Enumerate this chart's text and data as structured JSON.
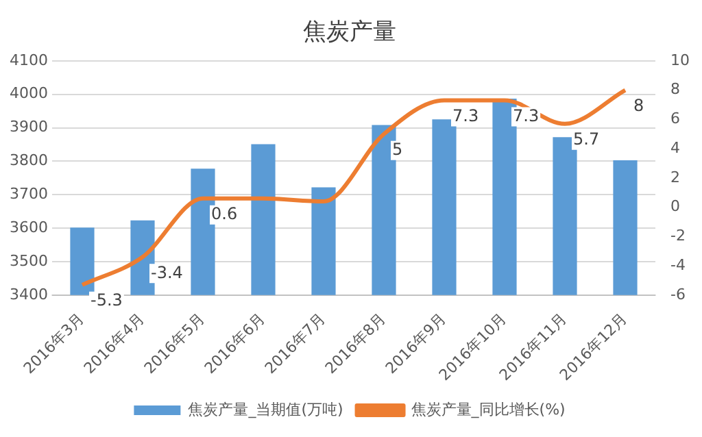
{
  "chart_data": {
    "type": "bar",
    "title": "焦炭产量",
    "categories": [
      "2016年3月",
      "2016年4月",
      "2016年5月",
      "2016年6月",
      "2016年7月",
      "2016年8月",
      "2016年9月",
      "2016年10月",
      "2016年11月",
      "2016年12月"
    ],
    "series": [
      {
        "name": "焦炭产量_当期值(万吨)",
        "color": "#5b9bd5",
        "values": [
          3602,
          3623,
          3778,
          3851,
          3722,
          3908,
          3925,
          3987,
          3872,
          3803
        ]
      },
      {
        "name": "焦炭产量_同比增长(%)",
        "type": "line",
        "axis": "y2",
        "color": "#ed7d31",
        "values": [
          -5.3,
          -3.4,
          0.6,
          0.6,
          0.4,
          5,
          7.3,
          7.3,
          5.7,
          8
        ],
        "value_labels": [
          "-5.3",
          "-3.4",
          "0.6",
          null,
          null,
          "5",
          "7.3",
          "7.3",
          "5.7",
          "8"
        ]
      }
    ],
    "ylim": [
      3400,
      4100
    ],
    "yticks": [
      3400,
      3500,
      3600,
      3700,
      3800,
      3900,
      4000,
      4100
    ],
    "y2lim": [
      -6,
      10
    ],
    "y2ticks": [
      -6,
      -4,
      -2,
      0,
      2,
      4,
      6,
      8,
      10
    ],
    "grid": "y",
    "legend": "bottom",
    "marker": "none"
  }
}
